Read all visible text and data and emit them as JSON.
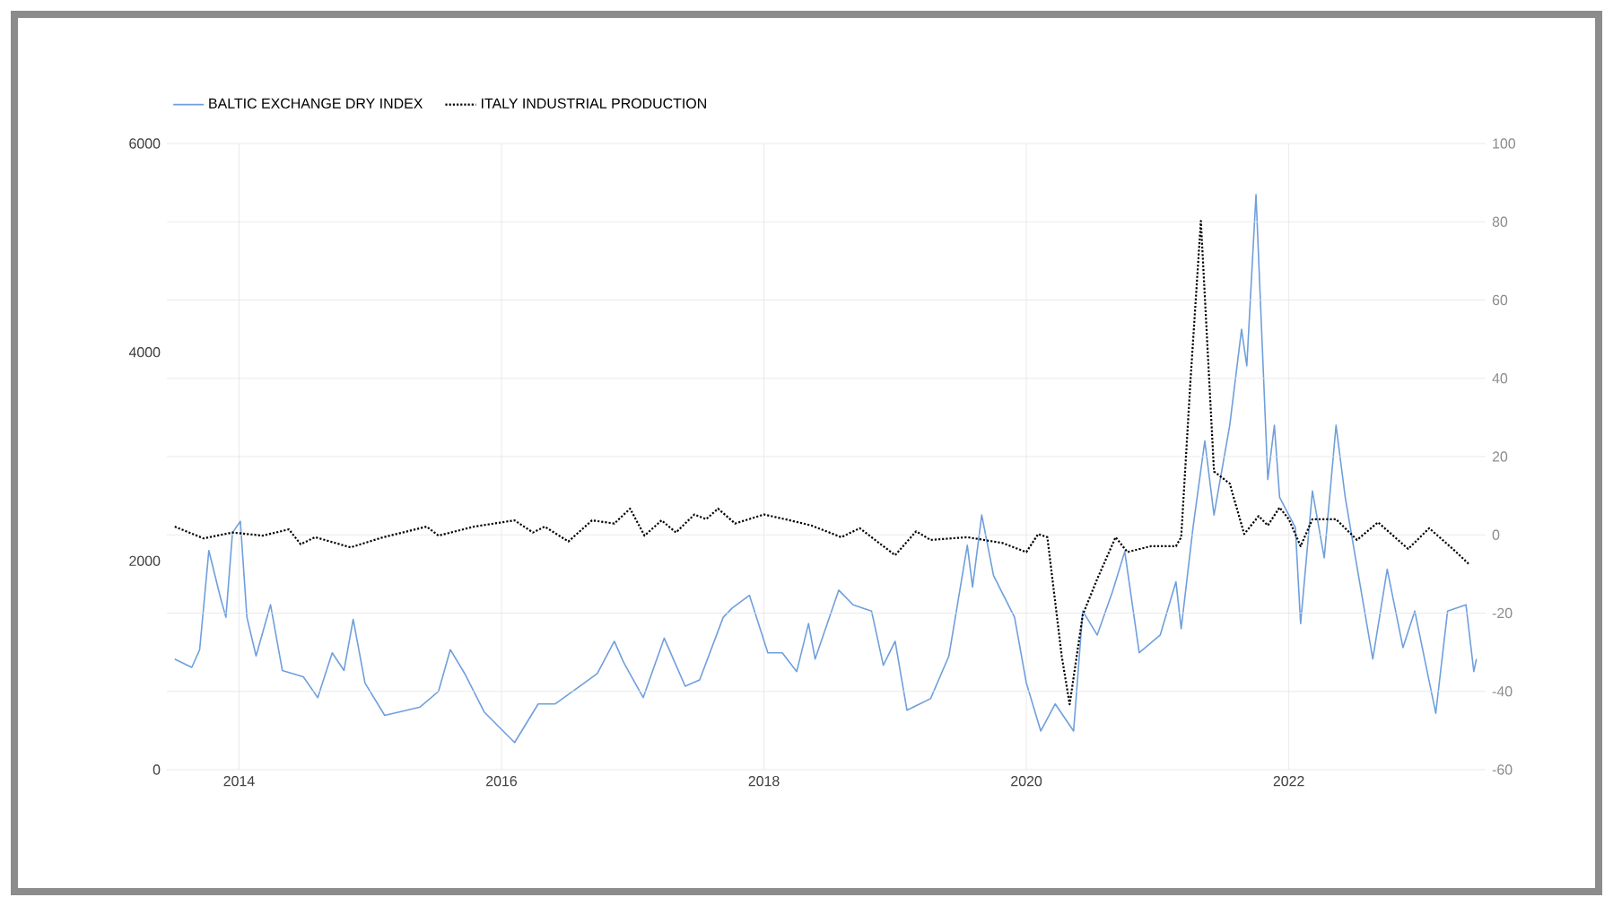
{
  "chart_data": {
    "type": "line",
    "xlim": [
      2013.45,
      2023.5
    ],
    "xticks": [
      2014,
      2016,
      2018,
      2020,
      2022
    ],
    "ylim": [
      0,
      6000
    ],
    "yticks": [
      0,
      2000,
      4000,
      6000
    ],
    "y2lim": [
      -60,
      100
    ],
    "y2ticks": [
      -60,
      -40,
      -20,
      0,
      20,
      40,
      60,
      80,
      100
    ],
    "grid": true,
    "legend": "top left",
    "marker": "none",
    "series": [
      {
        "name": "BALTIC EXCHANGE DRY INDEX",
        "color": "#6f9fdc",
        "line_style": "solid",
        "x": [
          2013.51,
          2013.64,
          2013.7,
          2013.77,
          2013.86,
          2013.9,
          2013.95,
          2014.01,
          2014.06,
          2014.13,
          2014.24,
          2014.33,
          2014.49,
          2014.6,
          2014.71,
          2014.8,
          2014.87,
          2014.96,
          2015.11,
          2015.38,
          2015.52,
          2015.61,
          2015.72,
          2015.87,
          2016.1,
          2016.28,
          2016.41,
          2016.73,
          2016.86,
          2016.93,
          2017.08,
          2017.24,
          2017.4,
          2017.51,
          2017.69,
          2017.76,
          2017.89,
          2018.03,
          2018.14,
          2018.25,
          2018.34,
          2018.39,
          2018.57,
          2018.68,
          2018.82,
          2018.91,
          2019.0,
          2019.09,
          2019.27,
          2019.41,
          2019.55,
          2019.59,
          2019.66,
          2019.75,
          2019.91,
          2020.0,
          2020.11,
          2020.22,
          2020.36,
          2020.43,
          2020.54,
          2020.66,
          2020.75,
          2020.86,
          2021.02,
          2021.14,
          2021.18,
          2021.27,
          2021.36,
          2021.43,
          2021.55,
          2021.64,
          2021.68,
          2021.75,
          2021.84,
          2021.89,
          2021.93,
          2022.05,
          2022.09,
          2022.18,
          2022.27,
          2022.36,
          2022.43,
          2022.5,
          2022.64,
          2022.75,
          2022.87,
          2022.96,
          2023.12,
          2023.21,
          2023.35,
          2023.41,
          2023.43
        ],
        "values": [
          1060,
          980,
          1150,
          2100,
          1640,
          1460,
          2270,
          2380,
          1460,
          1090,
          1580,
          950,
          890,
          690,
          1120,
          950,
          1440,
          830,
          520,
          600,
          750,
          1150,
          920,
          550,
          260,
          630,
          630,
          920,
          1230,
          1030,
          690,
          1260,
          800,
          860,
          1460,
          1550,
          1670,
          1120,
          1120,
          940,
          1400,
          1060,
          1720,
          1580,
          1520,
          1000,
          1230,
          570,
          680,
          1090,
          2150,
          1750,
          2440,
          1860,
          1460,
          830,
          370,
          630,
          370,
          1520,
          1290,
          1720,
          2090,
          1120,
          1290,
          1800,
          1350,
          2320,
          3150,
          2440,
          3300,
          4220,
          3870,
          5510,
          2780,
          3300,
          2610,
          2320,
          1400,
          2670,
          2030,
          3300,
          2610,
          2090,
          1060,
          1920,
          1170,
          1520,
          540,
          1520,
          1580,
          940,
          1060
        ]
      },
      {
        "name": "ITALY INDUSTRIAL PRODUCTION",
        "color": "#000000",
        "line_style": "dotted",
        "axis": "y2",
        "x": [
          2013.51,
          2013.73,
          2013.95,
          2014.18,
          2014.38,
          2014.47,
          2014.58,
          2014.85,
          2015.1,
          2015.43,
          2015.52,
          2015.79,
          2016.1,
          2016.24,
          2016.33,
          2016.51,
          2016.69,
          2016.86,
          2016.98,
          2017.09,
          2017.22,
          2017.33,
          2017.47,
          2017.56,
          2017.65,
          2017.78,
          2018.0,
          2018.2,
          2018.36,
          2018.59,
          2018.73,
          2019.0,
          2019.16,
          2019.27,
          2019.55,
          2019.82,
          2020.0,
          2020.09,
          2020.16,
          2020.27,
          2020.33,
          2020.43,
          2020.54,
          2020.68,
          2020.77,
          2020.95,
          2021.14,
          2021.18,
          2021.25,
          2021.33,
          2021.43,
          2021.55,
          2021.66,
          2021.77,
          2021.84,
          2021.93,
          2022.0,
          2022.09,
          2022.18,
          2022.36,
          2022.52,
          2022.68,
          2022.91,
          2023.07,
          2023.25,
          2023.37
        ],
        "values": [
          2.1,
          -0.9,
          0.6,
          -0.2,
          1.4,
          -2.4,
          -0.6,
          -3.2,
          -0.6,
          2.1,
          -0.2,
          2.1,
          3.7,
          0.6,
          2.1,
          -1.7,
          3.7,
          2.9,
          6.7,
          -0.2,
          3.7,
          0.6,
          5.2,
          4.0,
          6.7,
          2.9,
          5.2,
          3.7,
          2.4,
          -0.6,
          1.7,
          -5.2,
          0.9,
          -1.3,
          -0.6,
          -2.1,
          -4.4,
          0.2,
          -0.6,
          -31.1,
          -43.3,
          -20.4,
          -11.3,
          -0.6,
          -4.4,
          -2.9,
          -2.9,
          -0.6,
          39.0,
          80.2,
          16.2,
          13.1,
          0.2,
          4.8,
          2.4,
          7.0,
          4.0,
          -2.9,
          4.0,
          4.0,
          -1.3,
          3.2,
          -3.6,
          1.7,
          -3.6,
          -7.4
        ]
      }
    ]
  }
}
